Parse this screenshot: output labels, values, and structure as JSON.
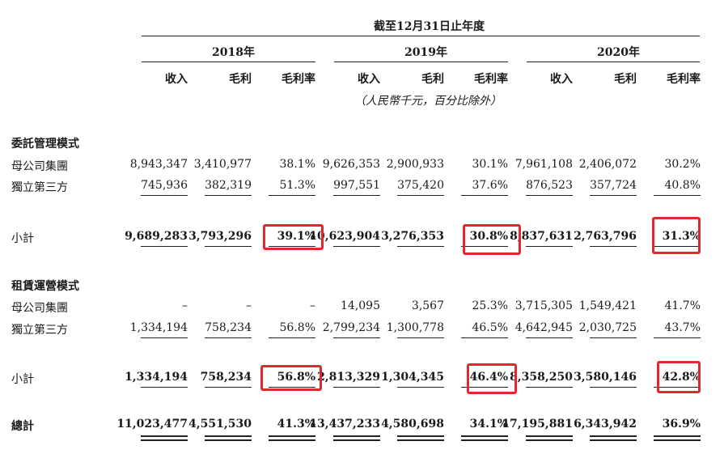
{
  "header": {
    "period": "截至12月31日止年度",
    "years": [
      "2018年",
      "2019年",
      "2020年"
    ],
    "columns": [
      "收入",
      "毛利",
      "毛利率"
    ],
    "unit_note": "（人民幣千元，百分比除外）"
  },
  "sections": [
    {
      "title": "委託管理模式",
      "rows": [
        {
          "label": "母公司集團",
          "values": [
            "8,943,347",
            "3,410,977",
            "38.1%",
            "9,626,353",
            "2,900,933",
            "30.1%",
            "7,961,108",
            "2,406,072",
            "30.2%"
          ]
        },
        {
          "label": "獨立第三方",
          "values": [
            "745,936",
            "382,319",
            "51.3%",
            "997,551",
            "375,420",
            "37.6%",
            "876,523",
            "357,724",
            "40.8%"
          ]
        }
      ],
      "subtotal": {
        "label": "小計",
        "values": [
          "9,689,283",
          "3,793,296",
          "39.1%",
          "10,623,904",
          "3,276,353",
          "30.8%",
          "8,837,631",
          "2,763,796",
          "31.3%"
        ]
      }
    },
    {
      "title": "租賃運營模式",
      "rows": [
        {
          "label": "母公司集團",
          "values": [
            "–",
            "–",
            "–",
            "14,095",
            "3,567",
            "25.3%",
            "3,715,305",
            "1,549,421",
            "41.7%"
          ]
        },
        {
          "label": "獨立第三方",
          "values": [
            "1,334,194",
            "758,234",
            "56.8%",
            "2,799,234",
            "1,300,778",
            "46.5%",
            "4,642,945",
            "2,030,725",
            "43.7%"
          ]
        }
      ],
      "subtotal": {
        "label": "小計",
        "values": [
          "1,334,194",
          "758,234",
          "56.8%",
          "2,813,329",
          "1,304,345",
          "46.4%",
          "8,358,250",
          "3,580,146",
          "42.8%"
        ]
      }
    }
  ],
  "total": {
    "label": "總計",
    "values": [
      "11,023,477",
      "4,551,530",
      "41.3%",
      "13,437,233",
      "4,580,698",
      "34.1%",
      "17,195,881",
      "6,343,942",
      "36.9%"
    ]
  },
  "colors": {
    "highlight": "#e0282e",
    "text": "#1a1a1a"
  }
}
